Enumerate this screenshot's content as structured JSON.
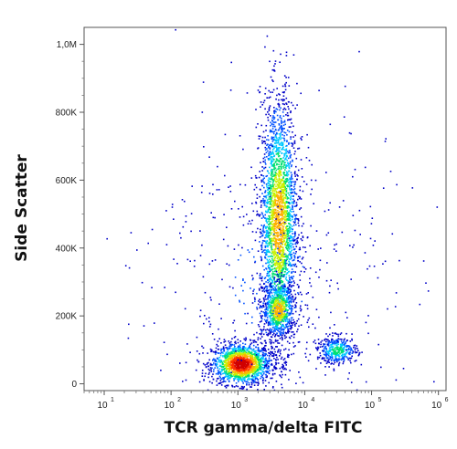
{
  "chart_data": {
    "type": "scatter",
    "title": "",
    "xlabel": "TCR gamma/delta FITC",
    "ylabel": "Side Scatter",
    "x_scale": "log",
    "xlim": [
      5,
      1300000
    ],
    "ylim": [
      -20000,
      1050000
    ],
    "x_ticks": [
      {
        "base": "10",
        "exp": "1",
        "value": 10
      },
      {
        "base": "10",
        "exp": "2",
        "value": 100
      },
      {
        "base": "10",
        "exp": "3",
        "value": 1000
      },
      {
        "base": "10",
        "exp": "4",
        "value": 10000
      },
      {
        "base": "10",
        "exp": "5",
        "value": 100000
      },
      {
        "base": "10",
        "exp": "6",
        "value": 1000000
      }
    ],
    "y_ticks": [
      {
        "label": "0",
        "value": 0
      },
      {
        "label": "200K",
        "value": 200000
      },
      {
        "label": "400K",
        "value": 400000
      },
      {
        "label": "600K",
        "value": 600000
      },
      {
        "label": "800K",
        "value": 800000
      },
      {
        "label": "1,0M",
        "value": 1000000
      }
    ],
    "grid": false,
    "legend": "none",
    "color_scale": [
      "#0000c8",
      "#0050ff",
      "#00c8ff",
      "#00e070",
      "#c8f000",
      "#ffb000",
      "#ff3000",
      "#d00000"
    ],
    "populations": [
      {
        "center_x": 1100,
        "center_y": 60000,
        "spread_log_x": 0.22,
        "spread_y": 30000,
        "points": 1600,
        "peak_density": "high"
      },
      {
        "center_x": 4000,
        "center_y": 480000,
        "spread_log_x": 0.14,
        "spread_y": 180000,
        "points": 2600,
        "peak_density": "medium"
      },
      {
        "center_x": 4000,
        "center_y": 220000,
        "spread_log_x": 0.12,
        "spread_y": 40000,
        "points": 700,
        "peak_density": "medium"
      },
      {
        "center_x": 30000,
        "center_y": 100000,
        "spread_log_x": 0.15,
        "spread_y": 20000,
        "points": 400,
        "peak_density": "low"
      },
      {
        "center_x": 3000,
        "center_y": 300000,
        "spread_log_x": 0.9,
        "spread_y": 250000,
        "points": 500,
        "peak_density": "sparse"
      }
    ]
  }
}
